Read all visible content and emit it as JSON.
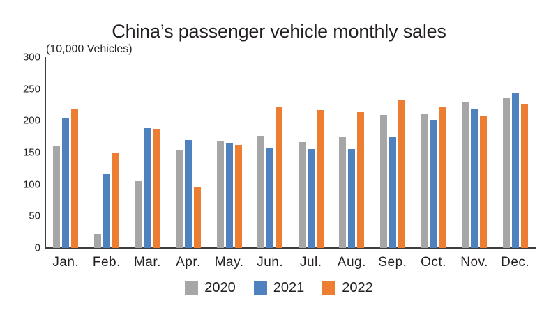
{
  "title": "China’s passenger vehicle monthly sales",
  "axis_note": "(10,000 Vehicles)",
  "chart_data": {
    "type": "bar",
    "title": "China’s passenger vehicle monthly sales",
    "unit_label": "(10,000 Vehicles)",
    "categories": [
      "Jan.",
      "Feb.",
      "Mar.",
      "Apr.",
      "May.",
      "Jun.",
      "Jul.",
      "Aug.",
      "Sep.",
      "Oct.",
      "Nov.",
      "Dec."
    ],
    "series": [
      {
        "name": "2020",
        "color": "#A6A6A6",
        "values": [
          161,
          22,
          105,
          154,
          167,
          176,
          166,
          175,
          209,
          211,
          230,
          237
        ]
      },
      {
        "name": "2021",
        "color": "#4E81BD",
        "values": [
          205,
          116,
          188,
          170,
          165,
          157,
          155,
          155,
          175,
          201,
          219,
          243
        ]
      },
      {
        "name": "2022",
        "color": "#ED7D31",
        "values": [
          218,
          149,
          187,
          96,
          162,
          222,
          217,
          213,
          233,
          222,
          207,
          226
        ]
      }
    ],
    "xlabel": "",
    "ylabel": "",
    "ylim": [
      0,
      300
    ],
    "yticks": [
      0,
      50,
      100,
      150,
      200,
      250,
      300
    ],
    "grid": false,
    "legend_position": "bottom",
    "axis_color": "#3d3d3d",
    "text_color": "#231f20"
  }
}
